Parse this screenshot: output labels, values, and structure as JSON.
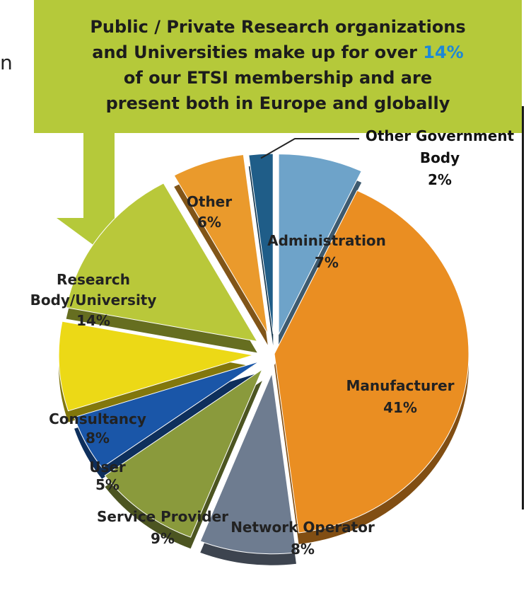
{
  "edge_fragment": "n",
  "callout": {
    "line1": "Public / Private Research organizations",
    "line2_prefix": "and Universities make up for over ",
    "line2_highlight": "14%",
    "line3": "of our ETSI membership and are",
    "line4": "present both in Europe and globally",
    "colors": {
      "box": "#b5c93a",
      "highlight": "#1e88d6",
      "arrow": "#b5c93a"
    }
  },
  "chart_data": {
    "type": "pie",
    "style": "3d-exploded",
    "legend": "none",
    "slices": [
      {
        "name": "Administration",
        "value": 7,
        "label": "7%",
        "color": "#6ea3c9"
      },
      {
        "name": "Manufacturer",
        "value": 41,
        "label": "41%",
        "color": "#ea8e22"
      },
      {
        "name": "Network Operator",
        "value": 8,
        "label": "8%",
        "color": "#6e7c90"
      },
      {
        "name": "Service Provider",
        "value": 9,
        "label": "9%",
        "color": "#8a9a3c"
      },
      {
        "name": "User",
        "value": 5,
        "label": "5%",
        "color": "#1a56a8"
      },
      {
        "name": "Consultancy",
        "value": 8,
        "label": "8%",
        "color": "#ecd916"
      },
      {
        "name": "Research Body/University",
        "value": 14,
        "label": "14%",
        "color": "#b9c83a"
      },
      {
        "name": "Other",
        "value": 6,
        "label": "6%",
        "color": "#ea9a2c"
      },
      {
        "name": "Other Government Body",
        "value": 2,
        "label": "2%",
        "color": "#1f5d88"
      }
    ],
    "labels": {
      "administration": {
        "name": "Administration",
        "pct": "7%"
      },
      "manufacturer": {
        "name": "Manufacturer",
        "pct": "41%"
      },
      "network_operator": {
        "name": "Network Operator",
        "pct": "8%"
      },
      "service_provider": {
        "name": "Service Provider",
        "pct": "9%"
      },
      "user": {
        "name": "User",
        "pct": "5%"
      },
      "consultancy": {
        "name": "Consultancy",
        "pct": "8%"
      },
      "research": {
        "name1": "Research",
        "name2": "Body/University",
        "pct": "14%"
      },
      "other": {
        "name": "Other",
        "pct": "6%"
      },
      "other_government": {
        "name1": "Other Government",
        "name2": "Body",
        "pct": "2%"
      }
    }
  }
}
